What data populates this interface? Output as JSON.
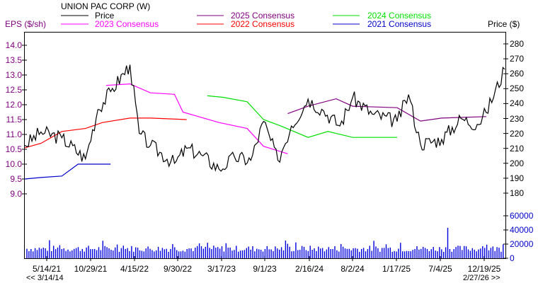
{
  "header": {
    "title": "UNION PAC CORP (W)",
    "left_axis_label": "EPS ($/sh)",
    "right_axis_label": "Price ($)"
  },
  "legend": [
    {
      "label": "Price",
      "color": "#000000"
    },
    {
      "label": "2025 Consensus",
      "color": "#800080"
    },
    {
      "label": "2024 Consensus",
      "color": "#00e000"
    },
    {
      "label": "2023 Consensus",
      "color": "#ff00ff"
    },
    {
      "label": "2022 Consensus",
      "color": "#ff0000"
    },
    {
      "label": "2021 Consensus",
      "color": "#0000cc"
    }
  ],
  "footer": {
    "start_nav": "<< 3/14/14",
    "end_nav": "2/27/26 >>"
  },
  "chart_data": {
    "type": "line",
    "title": "UNION PAC CORP (W)",
    "xlabel": "",
    "ylabel": "EPS ($/sh)",
    "ylabel_right": "Price ($)",
    "x_ticks": [
      "5/14/21",
      "10/29/21",
      "4/15/22",
      "9/30/22",
      "3/17/23",
      "9/1/23",
      "2/16/24",
      "8/2/24",
      "1/17/25",
      "7/4/25",
      "12/19/25"
    ],
    "eps_axis": {
      "ticks": [
        "14.0",
        "13.5",
        "13.0",
        "12.5",
        "12.0",
        "11.5",
        "11.0",
        "10.5",
        "10.0",
        "9.5",
        "9.0"
      ],
      "range": [
        9.0,
        14.0
      ]
    },
    "price_axis": {
      "ticks": [
        "280",
        "270",
        "260",
        "250",
        "240",
        "230",
        "220",
        "210",
        "200",
        "190",
        "180"
      ],
      "range": [
        180,
        280
      ]
    },
    "volume_axis": {
      "ticks": [
        "60000",
        "40000",
        "20000",
        "0"
      ],
      "range": [
        0,
        60000
      ]
    },
    "series": [
      {
        "name": "Price",
        "axis": "price",
        "color": "#000000",
        "x": [
          "3/14/21",
          "5/14/21",
          "8/1/21",
          "10/29/21",
          "12/15/21",
          "2/1/22",
          "4/15/22",
          "5/20/22",
          "7/1/22",
          "9/30/22",
          "11/15/22",
          "1/15/23",
          "3/17/23",
          "5/15/23",
          "7/15/23",
          "9/1/23",
          "10/25/23",
          "12/15/23",
          "2/16/24",
          "4/15/24",
          "6/15/24",
          "8/2/24",
          "10/15/24",
          "1/17/25",
          "3/1/25",
          "4/15/25",
          "7/4/25",
          "9/15/25",
          "11/15/25",
          "12/19/25",
          "2/27/26"
        ],
        "values": [
          212,
          221,
          217,
          203,
          236,
          248,
          266,
          220,
          212,
          200,
          210,
          205,
          196,
          204,
          202,
          228,
          202,
          225,
          243,
          235,
          225,
          244,
          233,
          228,
          246,
          213,
          216,
          230,
          226,
          234,
          263
        ]
      },
      {
        "name": "2025 Consensus",
        "axis": "eps",
        "color": "#800080",
        "x": [
          "12/1/23",
          "2/16/24",
          "6/1/24",
          "8/2/24",
          "1/17/25",
          "4/15/25",
          "7/4/25",
          "12/19/25"
        ],
        "values": [
          11.7,
          11.95,
          12.2,
          11.95,
          11.9,
          11.45,
          11.55,
          11.6
        ]
      },
      {
        "name": "2024 Consensus",
        "axis": "eps",
        "color": "#00e000",
        "x": [
          "2/1/23",
          "4/1/23",
          "7/1/23",
          "9/1/23",
          "11/1/23",
          "2/16/24",
          "5/1/24",
          "8/2/24",
          "1/17/25"
        ],
        "values": [
          12.3,
          12.25,
          12.1,
          11.5,
          11.3,
          10.9,
          11.1,
          10.9,
          10.9
        ]
      },
      {
        "name": "2023 Consensus",
        "axis": "eps",
        "color": "#ff00ff",
        "x": [
          "1/15/22",
          "4/15/22",
          "7/1/22",
          "9/30/22",
          "11/1/22",
          "3/17/23",
          "7/1/23",
          "9/1/23",
          "12/1/23"
        ],
        "values": [
          12.65,
          12.7,
          12.4,
          12.35,
          11.75,
          11.4,
          11.2,
          10.6,
          10.35
        ]
      },
      {
        "name": "2022 Consensus",
        "axis": "eps",
        "color": "#ff0000",
        "x": [
          "3/14/21",
          "5/14/21",
          "8/1/21",
          "10/29/21",
          "1/1/22",
          "4/15/22",
          "7/1/22",
          "11/15/22"
        ],
        "values": [
          10.55,
          10.7,
          11.1,
          11.2,
          11.4,
          11.55,
          11.55,
          11.5
        ]
      },
      {
        "name": "2021 Consensus",
        "axis": "eps",
        "color": "#0000cc",
        "x": [
          "3/14/21",
          "5/14/21",
          "8/1/21",
          "10/1/21",
          "12/1/21",
          "2/1/22"
        ],
        "values": [
          9.5,
          9.55,
          9.6,
          10.0,
          10.0,
          10.0
        ]
      }
    ],
    "volume_series": {
      "name": "Volume",
      "color": "#0000dd",
      "typical": 15000,
      "peak": 43000
    },
    "grid": false,
    "legend_position": "top"
  }
}
